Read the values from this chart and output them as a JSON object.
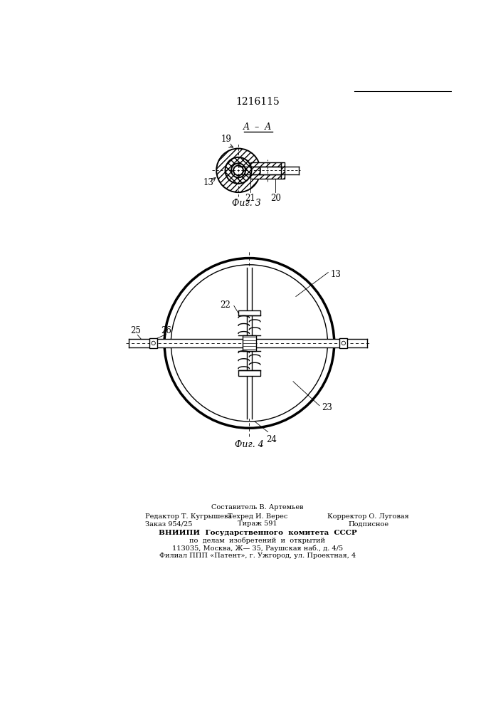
{
  "patent_number": "1216115",
  "fig3_caption": "Фиг. 3",
  "fig4_caption": "Фиг. 4",
  "bg_color": "#ffffff",
  "line_color": "#000000",
  "footer_col1_line1": "Редактор Т. Кугрышева",
  "footer_col1_line2": "Заказ 954/25",
  "footer_col2_line0": "Составитель В. Артемьев",
  "footer_col2_line1": "Техред И. Верес",
  "footer_col2_line2": "Тираж 591",
  "footer_col3_line1": "Корректор О. Луговая",
  "footer_col3_line2": "Подписное",
  "footer_bold1": "ВНИИПИ  Государственного  комитета  СССР",
  "footer_bold2": "по  делам  изобретений  и  открытий",
  "footer_line5": "113035, Москва, Ж— 35, Раушская наб., д. 4/5",
  "footer_line6": "Филиал ППП «Патент», г. Ужгород, ул. Проектная, 4"
}
